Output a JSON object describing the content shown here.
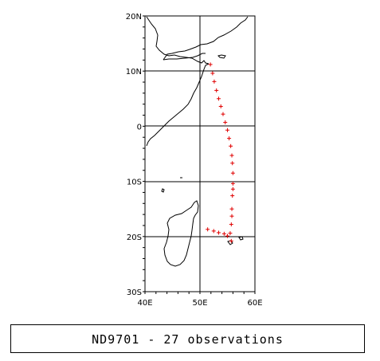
{
  "map": {
    "lon_range": [
      40,
      60
    ],
    "lat_range": [
      -30,
      20
    ],
    "lon_ticks": [
      {
        "value": 40,
        "label": "40E"
      },
      {
        "value": 50,
        "label": "50E"
      },
      {
        "value": 60,
        "label": "60E"
      }
    ],
    "lat_ticks": [
      {
        "value": 20,
        "label": "20N"
      },
      {
        "value": 10,
        "label": "10N"
      },
      {
        "value": 0,
        "label": "0"
      },
      {
        "value": -10,
        "label": "10S"
      },
      {
        "value": -20,
        "label": "20S"
      },
      {
        "value": -30,
        "label": "30S"
      }
    ],
    "marker_color": "#e00000",
    "line_color": "#000000"
  },
  "observations": [
    [
      51.9,
      11.2
    ],
    [
      52.3,
      9.6
    ],
    [
      52.6,
      8.1
    ],
    [
      53.0,
      6.5
    ],
    [
      53.4,
      5.0
    ],
    [
      53.8,
      3.6
    ],
    [
      54.2,
      2.2
    ],
    [
      54.6,
      0.7
    ],
    [
      55.0,
      -0.7
    ],
    [
      55.3,
      -2.2
    ],
    [
      55.6,
      -3.6
    ],
    [
      55.8,
      -5.3
    ],
    [
      55.9,
      -6.7
    ],
    [
      56.0,
      -8.5
    ],
    [
      56.0,
      -10.4
    ],
    [
      56.0,
      -11.4
    ],
    [
      55.9,
      -12.6
    ],
    [
      55.8,
      -15.0
    ],
    [
      55.8,
      -16.3
    ],
    [
      55.7,
      -17.8
    ],
    [
      55.5,
      -19.4
    ],
    [
      55.7,
      -20.8
    ],
    [
      55.0,
      -19.9
    ],
    [
      54.4,
      -19.5
    ],
    [
      53.4,
      -19.3
    ],
    [
      52.5,
      -19.0
    ],
    [
      51.4,
      -18.7
    ]
  ],
  "caption": "ND9701 - 27 observations"
}
